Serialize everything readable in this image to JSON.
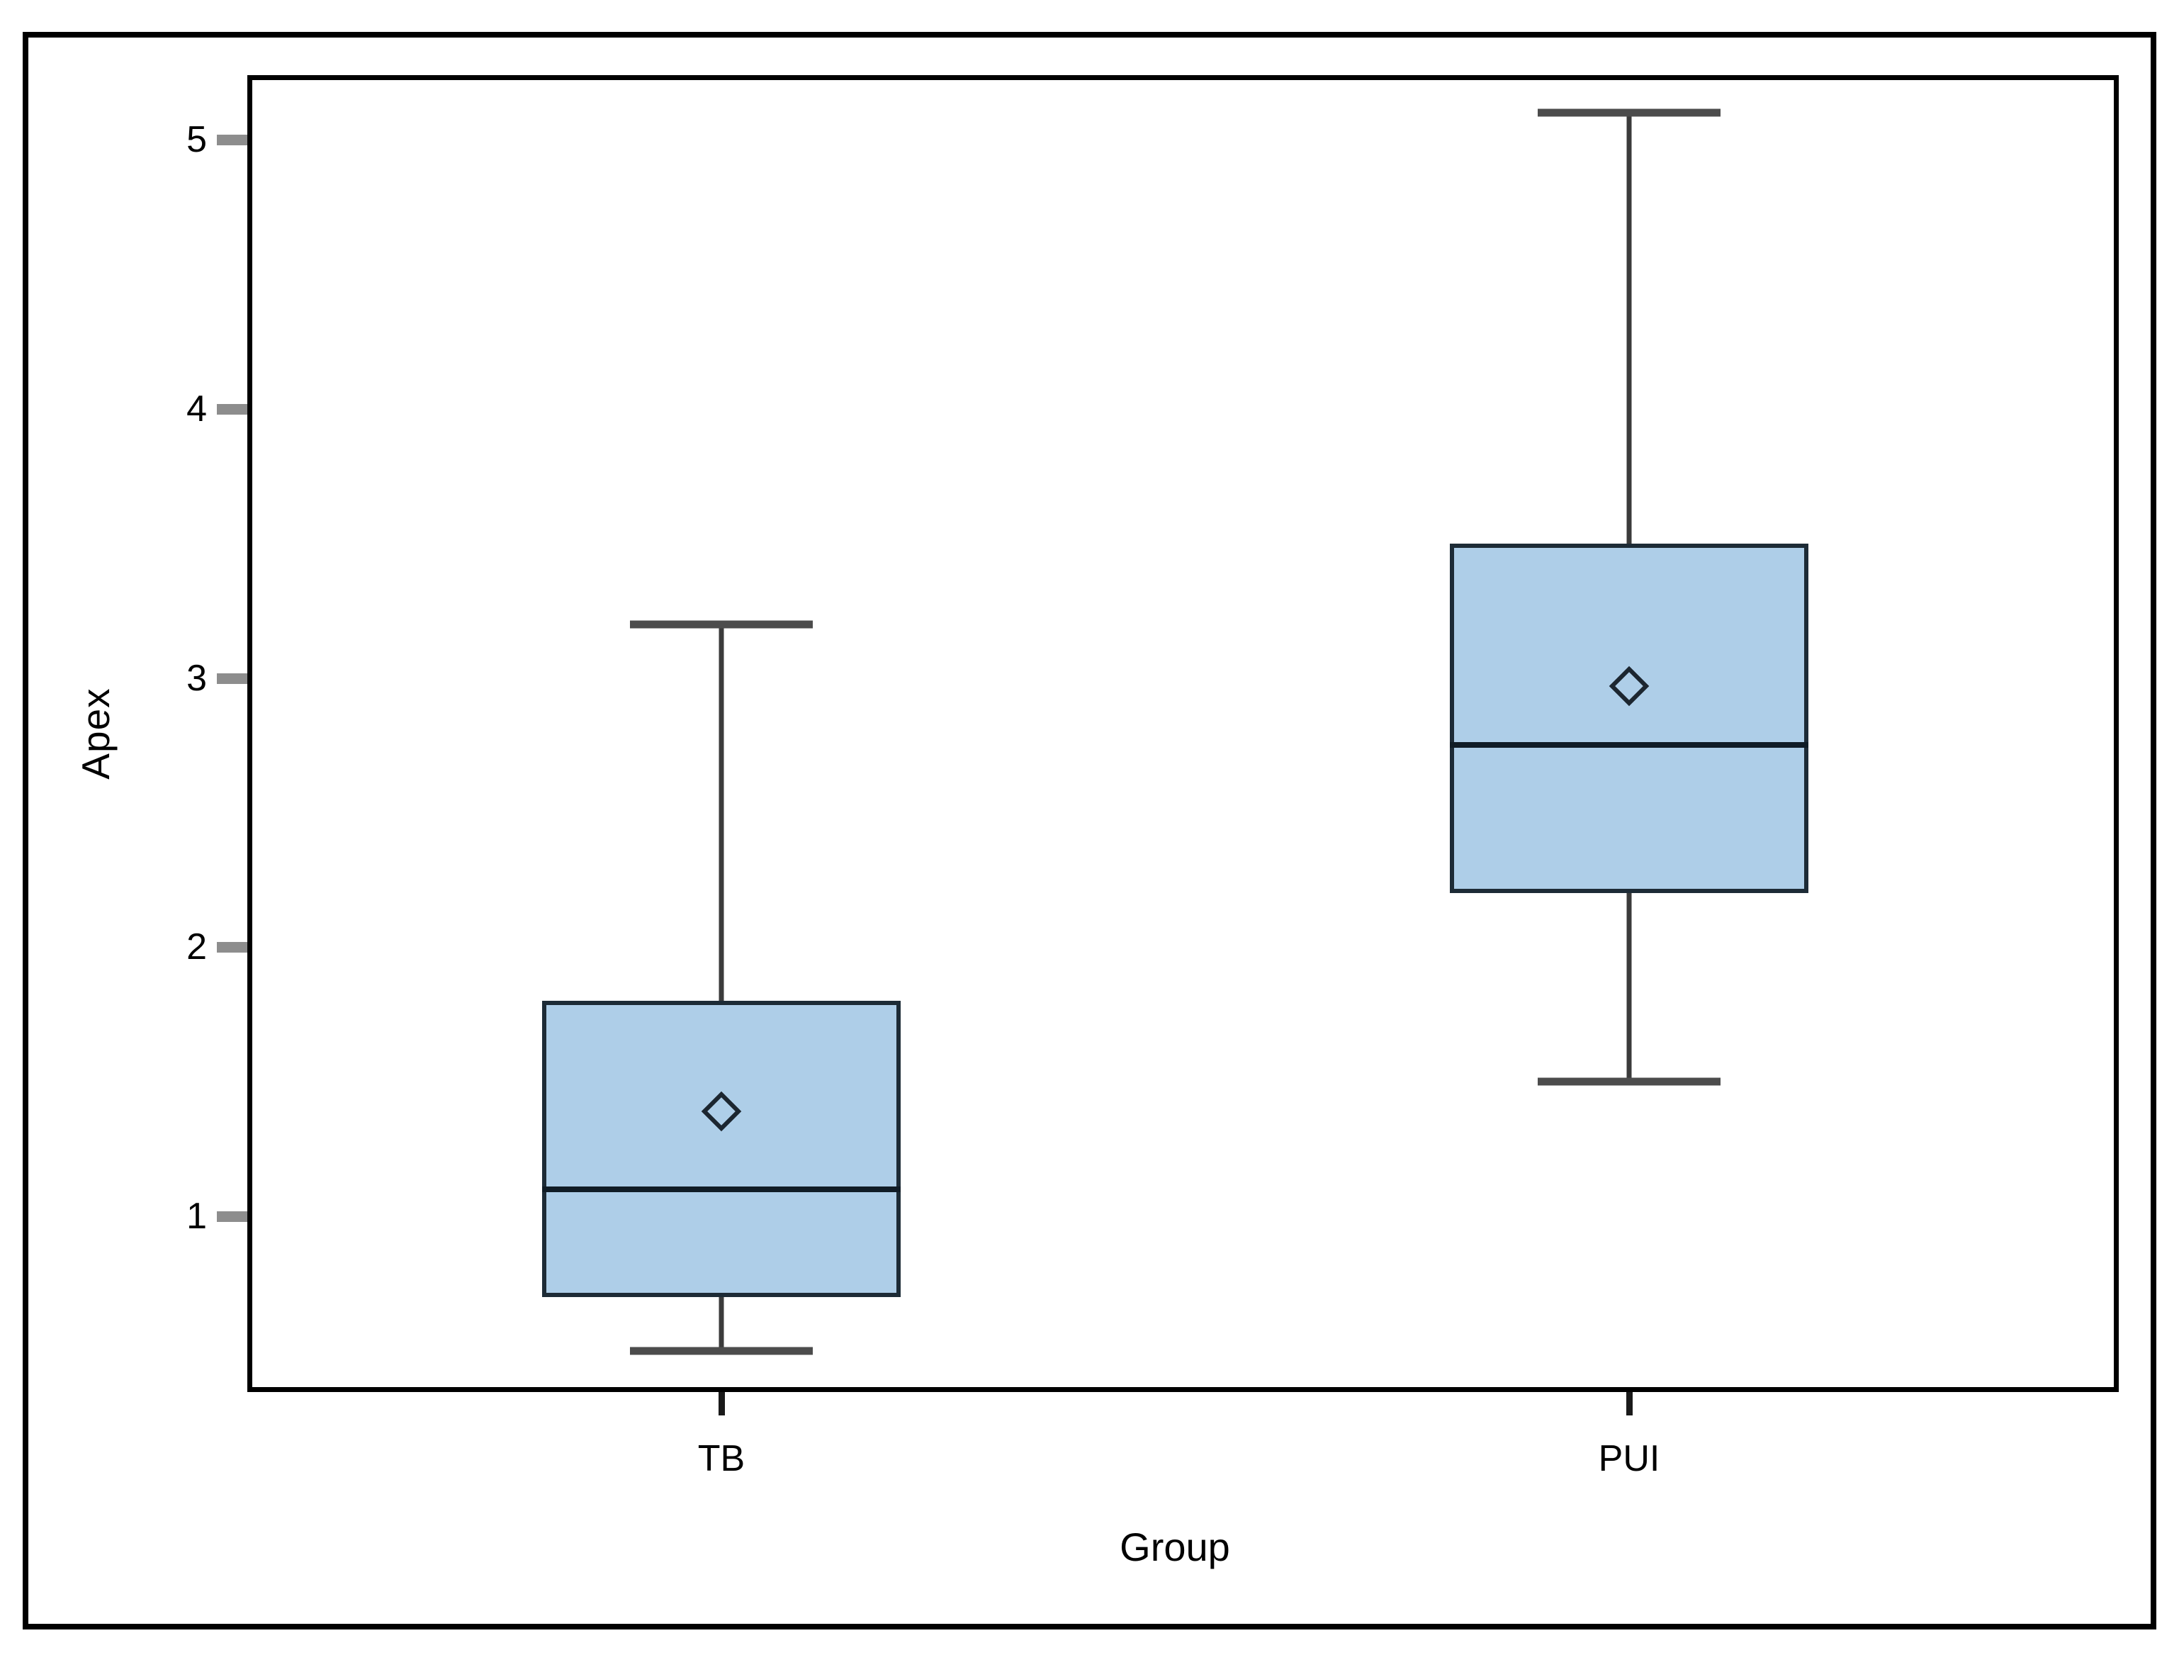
{
  "figure": {
    "background": "#ffffff",
    "border_color": "#000000"
  },
  "chart_data": {
    "type": "boxplot",
    "title": "",
    "xlabel": "Group",
    "ylabel": "Apex",
    "categories": [
      "TB",
      "PUI"
    ],
    "y_ticks": [
      5,
      4,
      3,
      2,
      1
    ],
    "ylim": [
      0.35,
      5.26
    ],
    "grid": false,
    "legend": "none",
    "series": [
      {
        "group": "TB",
        "whisker_low": 0.5,
        "q1": 0.7,
        "median": 1.1,
        "mean": 1.39,
        "q3": 1.8,
        "whisker_high": 3.2
      },
      {
        "group": "PUI",
        "whisker_low": 1.5,
        "q1": 2.2,
        "median": 2.75,
        "mean": 2.97,
        "q3": 3.5,
        "whisker_high": 5.1
      }
    ],
    "colors": {
      "box_fill": "#AECEE8",
      "box_border": "#1D2B36",
      "median_line": "#101C26",
      "whisker_line": "#3B3B3B",
      "whisker_cap": "#4C4C4C",
      "mean_marker_outline": "#1C2630",
      "axis_frame": "#000000",
      "tick_mark": "#8D8D8D",
      "text": "#000000"
    }
  }
}
